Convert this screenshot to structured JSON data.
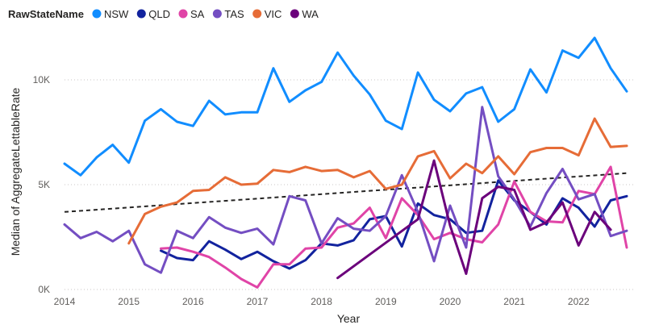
{
  "chart_data": {
    "type": "line",
    "xlabel": "Year",
    "ylabel": "Median of AggregateLettableRate",
    "legend_title": "RawStateName",
    "legend_placement": "top-left",
    "x_ticks": [
      "2014",
      "2015",
      "2016",
      "2017",
      "2018",
      "2019",
      "2020",
      "2021",
      "2022"
    ],
    "y_ticks": [
      "0K",
      "5K",
      "10K"
    ],
    "ylim": [
      0,
      12500
    ],
    "xlim": [
      2014,
      2022.85
    ],
    "grid": "horizontal dotted",
    "series": [
      {
        "name": "NSW",
        "color": "#118dff",
        "x": [
          2014.0,
          2014.25,
          2014.5,
          2014.75,
          2015.0,
          2015.25,
          2015.5,
          2015.75,
          2016.0,
          2016.25,
          2016.5,
          2016.75,
          2017.0,
          2017.25,
          2017.5,
          2017.75,
          2018.0,
          2018.25,
          2018.5,
          2018.75,
          2019.0,
          2019.25,
          2019.5,
          2019.75,
          2020.0,
          2020.25,
          2020.5,
          2020.75,
          2021.0,
          2021.25,
          2021.5,
          2021.75,
          2022.0,
          2022.25,
          2022.5,
          2022.75
        ],
        "values": [
          6000,
          5450,
          6300,
          6900,
          6050,
          8050,
          8600,
          8000,
          7800,
          9000,
          8350,
          8450,
          8450,
          10550,
          8950,
          9500,
          9900,
          11300,
          10200,
          9300,
          8050,
          7650,
          10350,
          9050,
          8500,
          9350,
          9650,
          8000,
          8600,
          10500,
          9400,
          11400,
          11050,
          12000,
          10550,
          9450
        ]
      },
      {
        "name": "QLD",
        "color": "#12239e",
        "x": [
          2015.5,
          2015.75,
          2016.0,
          2016.25,
          2016.5,
          2016.75,
          2017.0,
          2017.25,
          2017.5,
          2017.75,
          2018.0,
          2018.25,
          2018.5,
          2018.75,
          2019.0,
          2019.25,
          2019.5,
          2019.75,
          2020.0,
          2020.25,
          2020.5,
          2020.75,
          2021.0,
          2021.25,
          2021.5,
          2021.75,
          2022.0,
          2022.25,
          2022.5,
          2022.75
        ],
        "values": [
          1850,
          1500,
          1400,
          2300,
          1900,
          1450,
          1800,
          1350,
          1000,
          1400,
          2200,
          2100,
          2350,
          3350,
          3500,
          2050,
          4100,
          3550,
          3350,
          2700,
          2800,
          5200,
          4250,
          3700,
          3100,
          4350,
          3900,
          3000,
          4250,
          4450
        ]
      },
      {
        "name": "SA",
        "color": "#e044a7",
        "x": [
          2015.5,
          2015.75,
          2016.0,
          2016.25,
          2016.5,
          2016.75,
          2017.0,
          2017.25,
          2017.5,
          2017.75,
          2018.0,
          2018.25,
          2018.5,
          2018.75,
          2019.0,
          2019.25,
          2019.5,
          2019.75,
          2020.0,
          2020.25,
          2020.5,
          2020.75,
          2021.0,
          2021.25,
          2021.5,
          2021.75,
          2022.0,
          2022.25,
          2022.5,
          2022.75
        ],
        "values": [
          1950,
          2000,
          1800,
          1550,
          1050,
          500,
          100,
          1200,
          1200,
          1950,
          2000,
          2950,
          3150,
          3900,
          2450,
          4350,
          3550,
          2400,
          2700,
          2400,
          2250,
          3100,
          5150,
          3700,
          3250,
          3200,
          4700,
          4550,
          5850,
          2000
        ]
      },
      {
        "name": "TAS",
        "color": "#744ec2",
        "x": [
          2014.0,
          2014.25,
          2014.5,
          2014.75,
          2015.0,
          2015.25,
          2015.5,
          2015.75,
          2016.0,
          2016.25,
          2016.5,
          2016.75,
          2017.0,
          2017.25,
          2017.5,
          2017.75,
          2018.0,
          2018.25,
          2018.5,
          2018.75,
          2019.0,
          2019.25,
          2019.5,
          2019.75,
          2020.0,
          2020.25,
          2020.5,
          2020.75,
          2021.0,
          2021.25,
          2021.5,
          2021.75,
          2022.0,
          2022.25,
          2022.5,
          2022.75
        ],
        "values": [
          3100,
          2450,
          2750,
          2300,
          2800,
          1200,
          800,
          2800,
          2450,
          3450,
          2950,
          2700,
          2900,
          2150,
          4450,
          4250,
          2200,
          3400,
          2900,
          2800,
          3500,
          5450,
          3700,
          1350,
          4000,
          2000,
          8700,
          5400,
          4300,
          3000,
          4600,
          5750,
          4300,
          4550,
          2550,
          2800
        ]
      },
      {
        "name": "VIC",
        "color": "#e66c37",
        "x": [
          2015.0,
          2015.25,
          2015.5,
          2015.75,
          2016.0,
          2016.25,
          2016.5,
          2016.75,
          2017.0,
          2017.25,
          2017.5,
          2017.75,
          2018.0,
          2018.25,
          2018.5,
          2018.75,
          2019.0,
          2019.25,
          2019.5,
          2019.75,
          2020.0,
          2020.25,
          2020.5,
          2020.75,
          2021.0,
          2021.25,
          2021.5,
          2021.75,
          2022.0,
          2022.25,
          2022.5,
          2022.75
        ],
        "values": [
          2200,
          3600,
          3950,
          4150,
          4700,
          4750,
          5350,
          5000,
          5050,
          5700,
          5600,
          5850,
          5650,
          5700,
          5350,
          5650,
          4800,
          5000,
          6350,
          6600,
          5300,
          6000,
          5550,
          6350,
          5500,
          6550,
          6750,
          6750,
          6400,
          8150,
          6800,
          6850
        ]
      },
      {
        "name": "WA",
        "color": "#6b007b",
        "x": [
          2018.25,
          2019.5,
          2019.75,
          2020.0,
          2020.25,
          2020.5,
          2020.75,
          2021.0,
          2021.25,
          2021.5,
          2021.75,
          2022.0,
          2022.25,
          2022.5
        ],
        "values": [
          550,
          3350,
          6150,
          3050,
          750,
          4350,
          4900,
          4750,
          2850,
          3200,
          4150,
          2100,
          3700,
          2850
        ]
      }
    ],
    "trend_line": {
      "x": [
        2014.0,
        2022.75
      ],
      "values": [
        3700,
        5550
      ],
      "color": "#252423",
      "style": "dashed"
    }
  }
}
